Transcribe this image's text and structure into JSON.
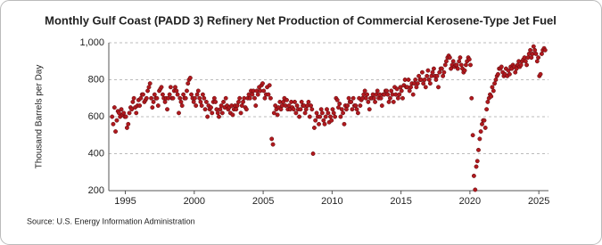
{
  "chart_data": {
    "type": "scatter",
    "title": "Monthly Gulf Coast (PADD 3) Refinery Net Production of Commercial Kerosene-Type Jet Fuel",
    "y_label": "Thousand Barrels per Day",
    "source": "Source: U.S. Energy Information Administration",
    "color": "#b0191e",
    "grid": true,
    "xlim": [
      1993.8,
      2025.7
    ],
    "xticks": [
      1995,
      2000,
      2005,
      2010,
      2015,
      2020,
      2025
    ],
    "ylim": [
      200,
      1000
    ],
    "yticks": [
      200,
      400,
      600,
      800,
      {
        "value": 1000,
        "label": "1,000"
      }
    ],
    "x": [
      1994.04,
      1994.12,
      1994.21,
      1994.29,
      1994.38,
      1994.46,
      1994.54,
      1994.62,
      1994.71,
      1994.79,
      1994.88,
      1994.96,
      1995.04,
      1995.12,
      1995.21,
      1995.29,
      1995.38,
      1995.46,
      1995.54,
      1995.62,
      1995.71,
      1995.79,
      1995.88,
      1995.96,
      1996.04,
      1996.12,
      1996.21,
      1996.29,
      1996.38,
      1996.46,
      1996.54,
      1996.62,
      1996.71,
      1996.79,
      1996.88,
      1996.96,
      1997.04,
      1997.12,
      1997.21,
      1997.29,
      1997.38,
      1997.46,
      1997.54,
      1997.62,
      1997.71,
      1997.79,
      1997.88,
      1997.96,
      1998.04,
      1998.12,
      1998.21,
      1998.29,
      1998.38,
      1998.46,
      1998.54,
      1998.62,
      1998.71,
      1998.79,
      1998.88,
      1998.96,
      1999.04,
      1999.12,
      1999.21,
      1999.29,
      1999.38,
      1999.46,
      1999.54,
      1999.62,
      1999.71,
      1999.79,
      1999.88,
      1999.96,
      2000.04,
      2000.12,
      2000.21,
      2000.29,
      2000.38,
      2000.46,
      2000.54,
      2000.62,
      2000.71,
      2000.79,
      2000.88,
      2000.96,
      2001.04,
      2001.12,
      2001.21,
      2001.29,
      2001.38,
      2001.46,
      2001.54,
      2001.62,
      2001.71,
      2001.79,
      2001.88,
      2001.96,
      2002.04,
      2002.12,
      2002.21,
      2002.29,
      2002.38,
      2002.46,
      2002.54,
      2002.62,
      2002.71,
      2002.79,
      2002.88,
      2002.96,
      2003.04,
      2003.12,
      2003.21,
      2003.29,
      2003.38,
      2003.46,
      2003.54,
      2003.62,
      2003.71,
      2003.79,
      2003.88,
      2003.96,
      2004.04,
      2004.12,
      2004.21,
      2004.29,
      2004.38,
      2004.46,
      2004.54,
      2004.62,
      2004.71,
      2004.79,
      2004.88,
      2004.96,
      2005.04,
      2005.12,
      2005.21,
      2005.29,
      2005.38,
      2005.46,
      2005.54,
      2005.62,
      2005.71,
      2005.79,
      2005.88,
      2005.96,
      2006.04,
      2006.12,
      2006.21,
      2006.29,
      2006.38,
      2006.46,
      2006.54,
      2006.62,
      2006.71,
      2006.79,
      2006.88,
      2006.96,
      2007.04,
      2007.12,
      2007.21,
      2007.29,
      2007.38,
      2007.46,
      2007.54,
      2007.62,
      2007.71,
      2007.79,
      2007.88,
      2007.96,
      2008.04,
      2008.12,
      2008.21,
      2008.29,
      2008.38,
      2008.46,
      2008.54,
      2008.62,
      2008.71,
      2008.79,
      2008.88,
      2008.96,
      2009.04,
      2009.12,
      2009.21,
      2009.29,
      2009.38,
      2009.46,
      2009.54,
      2009.62,
      2009.71,
      2009.79,
      2009.88,
      2009.96,
      2010.04,
      2010.12,
      2010.21,
      2010.29,
      2010.38,
      2010.46,
      2010.54,
      2010.62,
      2010.71,
      2010.79,
      2010.88,
      2010.96,
      2011.04,
      2011.12,
      2011.21,
      2011.29,
      2011.38,
      2011.46,
      2011.54,
      2011.62,
      2011.71,
      2011.79,
      2011.88,
      2011.96,
      2012.04,
      2012.12,
      2012.21,
      2012.29,
      2012.38,
      2012.46,
      2012.54,
      2012.62,
      2012.71,
      2012.79,
      2012.88,
      2012.96,
      2013.04,
      2013.12,
      2013.21,
      2013.29,
      2013.38,
      2013.46,
      2013.54,
      2013.62,
      2013.71,
      2013.79,
      2013.88,
      2013.96,
      2014.04,
      2014.12,
      2014.21,
      2014.29,
      2014.38,
      2014.46,
      2014.54,
      2014.62,
      2014.71,
      2014.79,
      2014.88,
      2014.96,
      2015.04,
      2015.12,
      2015.21,
      2015.29,
      2015.38,
      2015.46,
      2015.54,
      2015.62,
      2015.71,
      2015.79,
      2015.88,
      2015.96,
      2016.04,
      2016.12,
      2016.21,
      2016.29,
      2016.38,
      2016.46,
      2016.54,
      2016.62,
      2016.71,
      2016.79,
      2016.88,
      2016.96,
      2017.04,
      2017.12,
      2017.21,
      2017.29,
      2017.38,
      2017.46,
      2017.54,
      2017.62,
      2017.71,
      2017.79,
      2017.88,
      2017.96,
      2018.04,
      2018.12,
      2018.21,
      2018.29,
      2018.38,
      2018.46,
      2018.54,
      2018.62,
      2018.71,
      2018.79,
      2018.88,
      2018.96,
      2019.04,
      2019.12,
      2019.21,
      2019.29,
      2019.38,
      2019.46,
      2019.54,
      2019.62,
      2019.71,
      2019.79,
      2019.88,
      2019.96,
      2020.04,
      2020.12,
      2020.21,
      2020.29,
      2020.38,
      2020.46,
      2020.54,
      2020.62,
      2020.71,
      2020.79,
      2020.88,
      2020.96,
      2021.04,
      2021.12,
      2021.21,
      2021.29,
      2021.38,
      2021.46,
      2021.54,
      2021.62,
      2021.71,
      2021.79,
      2021.88,
      2021.96,
      2022.04,
      2022.12,
      2022.21,
      2022.29,
      2022.38,
      2022.46,
      2022.54,
      2022.62,
      2022.71,
      2022.79,
      2022.88,
      2022.96,
      2023.04,
      2023.12,
      2023.21,
      2023.29,
      2023.38,
      2023.46,
      2023.54,
      2023.62,
      2023.71,
      2023.79,
      2023.88,
      2023.96,
      2024.04,
      2024.12,
      2024.21,
      2024.29,
      2024.38,
      2024.46,
      2024.54,
      2024.62,
      2024.71,
      2024.79,
      2024.88,
      2024.96,
      2025.04,
      2025.12,
      2025.21,
      2025.29,
      2025.38,
      2025.46
    ],
    "values": [
      600,
      560,
      650,
      520,
      580,
      630,
      620,
      600,
      640,
      610,
      620,
      600,
      600,
      540,
      560,
      620,
      650,
      640,
      680,
      700,
      650,
      620,
      660,
      690,
      660,
      700,
      720,
      720,
      680,
      690,
      700,
      740,
      760,
      780,
      700,
      650,
      680,
      720,
      700,
      700,
      660,
      740,
      750,
      760,
      720,
      700,
      680,
      700,
      640,
      700,
      720,
      760,
      700,
      700,
      740,
      760,
      740,
      720,
      620,
      700,
      680,
      660,
      720,
      700,
      700,
      740,
      780,
      800,
      810,
      720,
      700,
      680,
      700,
      660,
      720,
      740,
      700,
      680,
      660,
      720,
      700,
      640,
      680,
      600,
      660,
      640,
      650,
      620,
      680,
      700,
      680,
      640,
      620,
      600,
      640,
      660,
      620,
      680,
      650,
      700,
      660,
      640,
      650,
      620,
      660,
      610,
      640,
      660,
      640,
      660,
      680,
      700,
      620,
      660,
      680,
      700,
      650,
      640,
      700,
      720,
      700,
      740,
      720,
      740,
      700,
      660,
      740,
      720,
      760,
      740,
      770,
      780,
      740,
      700,
      720,
      760,
      720,
      770,
      700,
      480,
      450,
      620,
      660,
      640,
      610,
      650,
      680,
      640,
      660,
      680,
      700,
      660,
      690,
      640,
      660,
      640,
      680,
      650,
      640,
      680,
      620,
      660,
      640,
      600,
      640,
      680,
      660,
      660,
      620,
      640,
      660,
      680,
      600,
      660,
      640,
      400,
      540,
      580,
      620,
      600,
      560,
      600,
      640,
      620,
      580,
      560,
      600,
      640,
      620,
      570,
      600,
      580,
      640,
      620,
      600,
      700,
      690,
      650,
      670,
      600,
      640,
      620,
      560,
      660,
      640,
      660,
      700,
      680,
      680,
      640,
      700,
      660,
      660,
      640,
      620,
      700,
      660,
      690,
      700,
      720,
      740,
      700,
      720,
      680,
      640,
      700,
      700,
      720,
      700,
      680,
      720,
      740,
      700,
      720,
      700,
      660,
      720,
      720,
      740,
      740,
      720,
      680,
      700,
      740,
      720,
      680,
      760,
      720,
      750,
      700,
      720,
      760,
      740,
      700,
      770,
      800,
      760,
      760,
      800,
      740,
      760,
      780,
      720,
      780,
      800,
      760,
      780,
      820,
      800,
      800,
      840,
      780,
      800,
      760,
      820,
      850,
      800,
      780,
      820,
      840,
      860,
      820,
      800,
      820,
      760,
      840,
      860,
      860,
      820,
      840,
      880,
      900,
      920,
      930,
      920,
      860,
      880,
      900,
      870,
      880,
      880,
      860,
      900,
      920,
      880,
      860,
      840,
      850,
      880,
      900,
      920,
      910,
      880,
      700,
      500,
      280,
      205,
      330,
      360,
      420,
      480,
      520,
      560,
      580,
      580,
      540,
      640,
      680,
      700,
      720,
      710,
      760,
      740,
      780,
      800,
      820,
      830,
      860,
      860,
      870,
      840,
      820,
      830,
      860,
      820,
      850,
      830,
      870,
      860,
      880,
      870,
      840,
      860,
      880,
      900,
      870,
      880,
      900,
      910,
      920,
      900,
      880,
      920,
      940,
      960,
      920,
      940,
      980,
      960,
      940,
      900,
      920,
      820,
      830,
      940,
      960,
      970,
      960
    ]
  }
}
